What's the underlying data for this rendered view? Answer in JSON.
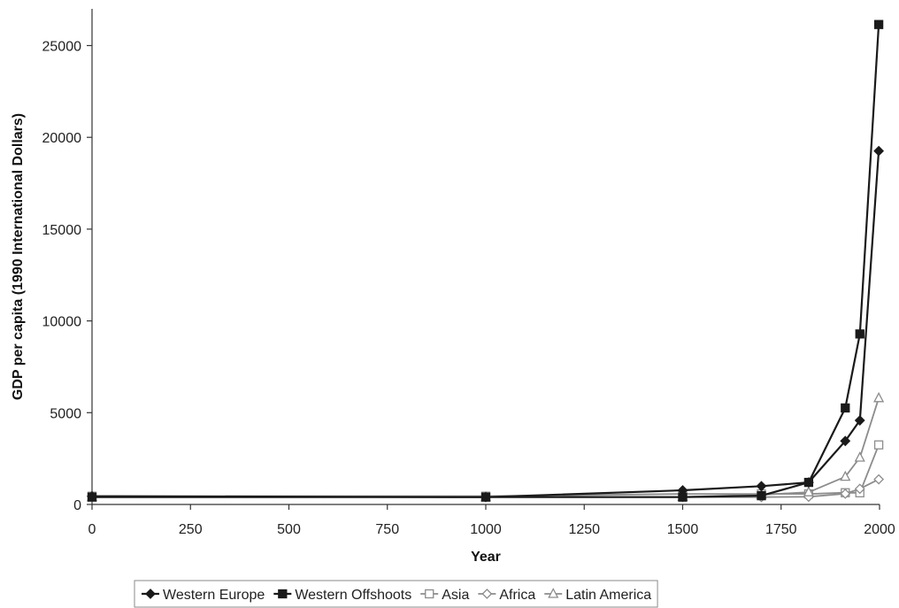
{
  "chart_data": {
    "type": "line",
    "title": "",
    "xlabel": "Year",
    "ylabel": "GDP per capita (1990 International Dollars)",
    "xlim": [
      0,
      2000
    ],
    "ylim": [
      0,
      27000
    ],
    "x_ticks": [
      "0",
      "250",
      "500",
      "750",
      "1000",
      "1250",
      "1500",
      "1750",
      "2000"
    ],
    "y_ticks": [
      "0",
      "5000",
      "10000",
      "15000",
      "20000",
      "25000"
    ],
    "grid": false,
    "legend_position": "bottom",
    "series": [
      {
        "name": "Western Europe",
        "marker": "filled-diamond",
        "color": "#1a1a1a",
        "points": [
          [
            0,
            450
          ],
          [
            1000,
            400
          ],
          [
            1500,
            771
          ],
          [
            1700,
            998
          ],
          [
            1820,
            1202
          ],
          [
            1913,
            3458
          ],
          [
            1950,
            4579
          ],
          [
            1998,
            19256
          ]
        ]
      },
      {
        "name": "Western Offshoots",
        "marker": "filled-square",
        "color": "#1a1a1a",
        "points": [
          [
            0,
            400
          ],
          [
            1000,
            400
          ],
          [
            1500,
            400
          ],
          [
            1700,
            476
          ],
          [
            1820,
            1202
          ],
          [
            1913,
            5257
          ],
          [
            1950,
            9288
          ],
          [
            1998,
            26146
          ]
        ]
      },
      {
        "name": "Asia",
        "marker": "open-square",
        "color": "#8c8c8c",
        "points": [
          [
            0,
            450
          ],
          [
            1000,
            450
          ],
          [
            1500,
            572
          ],
          [
            1700,
            571
          ],
          [
            1820,
            575
          ],
          [
            1913,
            640
          ],
          [
            1950,
            635
          ],
          [
            1998,
            3245
          ]
        ]
      },
      {
        "name": "Africa",
        "marker": "open-diamond",
        "color": "#8c8c8c",
        "points": [
          [
            0,
            425
          ],
          [
            1000,
            416
          ],
          [
            1500,
            400
          ],
          [
            1700,
            400
          ],
          [
            1820,
            418
          ],
          [
            1913,
            585
          ],
          [
            1950,
            852
          ],
          [
            1998,
            1368
          ]
        ]
      },
      {
        "name": "Latin America",
        "marker": "open-triangle",
        "color": "#8c8c8c",
        "points": [
          [
            0,
            400
          ],
          [
            1000,
            400
          ],
          [
            1500,
            416
          ],
          [
            1700,
            529
          ],
          [
            1820,
            665
          ],
          [
            1913,
            1511
          ],
          [
            1950,
            2554
          ],
          [
            1998,
            5795
          ]
        ]
      }
    ]
  }
}
